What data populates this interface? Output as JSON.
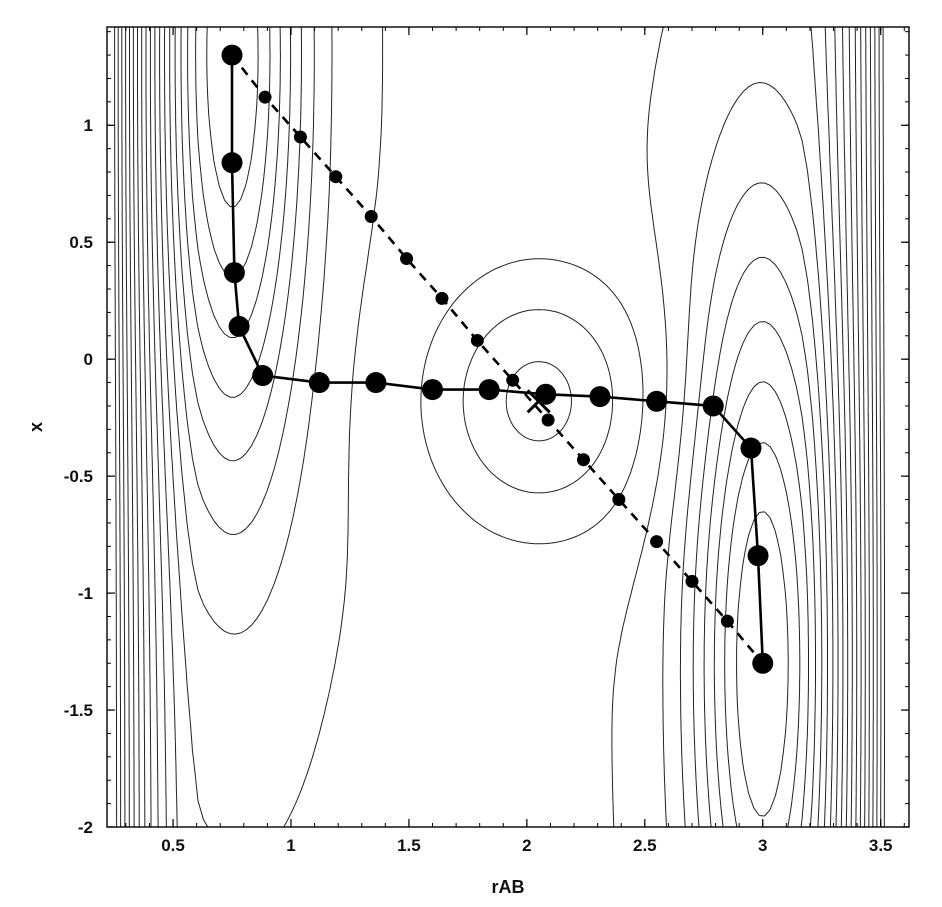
{
  "chart_data": {
    "type": "line",
    "title": "",
    "xlabel": "rAB",
    "ylabel": "x",
    "xlim": [
      0.22,
      3.62
    ],
    "ylim": [
      -2.0,
      1.42
    ],
    "x_ticks": [
      0.5,
      1,
      1.5,
      2,
      2.5,
      3,
      3.5
    ],
    "x_tick_labels": [
      "0.5",
      "1",
      "1.5",
      "2",
      "2.5",
      "3",
      "3.5"
    ],
    "y_ticks": [
      1,
      0.5,
      0,
      -0.5,
      -1,
      -1.5,
      -2
    ],
    "y_tick_labels": [
      "1",
      "0.5",
      "0",
      "-0.5",
      "-1",
      "-1.5",
      "-2"
    ],
    "grid": false,
    "legend": "none",
    "contour_background": "potential energy surface with two minima near (0.75, 1.3) and (3.0, -1.3) and a saddle point near (2.05, -0.18)",
    "saddle_point": {
      "x": 2.05,
      "y": -0.18,
      "marker": "cross"
    },
    "series": [
      {
        "style": "solid",
        "marker": "large-circle",
        "color": "#000000",
        "points": [
          {
            "x": 0.75,
            "y": 1.3
          },
          {
            "x": 0.75,
            "y": 0.84
          },
          {
            "x": 0.76,
            "y": 0.37
          },
          {
            "x": 0.78,
            "y": 0.14
          },
          {
            "x": 0.88,
            "y": -0.07
          },
          {
            "x": 1.12,
            "y": -0.1
          },
          {
            "x": 1.36,
            "y": -0.1
          },
          {
            "x": 1.6,
            "y": -0.13
          },
          {
            "x": 1.84,
            "y": -0.13
          },
          {
            "x": 2.08,
            "y": -0.15
          },
          {
            "x": 2.31,
            "y": -0.16
          },
          {
            "x": 2.55,
            "y": -0.18
          },
          {
            "x": 2.79,
            "y": -0.2
          },
          {
            "x": 2.95,
            "y": -0.38
          },
          {
            "x": 2.98,
            "y": -0.84
          },
          {
            "x": 3.0,
            "y": -1.3
          }
        ]
      },
      {
        "style": "dashed",
        "marker": "small-circle",
        "color": "#000000",
        "points": [
          {
            "x": 0.75,
            "y": 1.3
          },
          {
            "x": 0.89,
            "y": 1.12
          },
          {
            "x": 1.04,
            "y": 0.95
          },
          {
            "x": 1.19,
            "y": 0.78
          },
          {
            "x": 1.34,
            "y": 0.61
          },
          {
            "x": 1.49,
            "y": 0.43
          },
          {
            "x": 1.64,
            "y": 0.26
          },
          {
            "x": 1.79,
            "y": 0.08
          },
          {
            "x": 1.94,
            "y": -0.09
          },
          {
            "x": 2.09,
            "y": -0.26
          },
          {
            "x": 2.24,
            "y": -0.43
          },
          {
            "x": 2.39,
            "y": -0.6
          },
          {
            "x": 2.55,
            "y": -0.78
          },
          {
            "x": 2.7,
            "y": -0.95
          },
          {
            "x": 2.85,
            "y": -1.12
          },
          {
            "x": 3.0,
            "y": -1.3
          }
        ]
      }
    ]
  }
}
